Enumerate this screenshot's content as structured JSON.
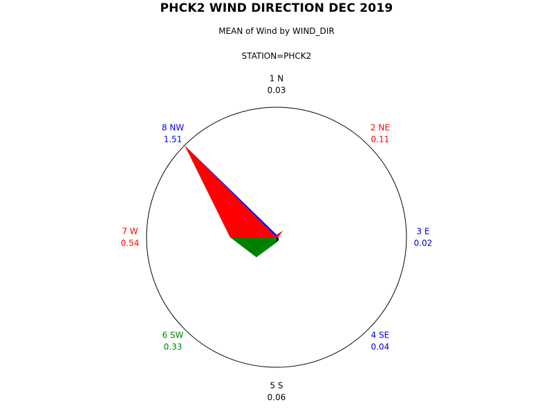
{
  "title": "PHCK2 WIND DIRECTION DEC 2019",
  "subtitle": "MEAN of Wind by WIND_DIR",
  "station": "STATION=PHCK2",
  "chart_data": {
    "type": "polar-star",
    "title": "PHCK2 WIND DIRECTION DEC 2019",
    "subtitle": "MEAN of Wind by WIND_DIR",
    "group": "STATION=PHCK2",
    "rmax": 1.51,
    "directions": [
      {
        "label": "1 N",
        "value": 0.03,
        "value_text": "0.03",
        "color": "#000000"
      },
      {
        "label": "2 NE",
        "value": 0.11,
        "value_text": "0.11",
        "color": "#ff0000"
      },
      {
        "label": "3 E",
        "value": 0.02,
        "value_text": "0.02",
        "color": "#0000cc"
      },
      {
        "label": "4 SE",
        "value": 0.04,
        "value_text": "0.04",
        "color": "#0000cc"
      },
      {
        "label": "5 S",
        "value": 0.06,
        "value_text": "0.06",
        "color": "#000000"
      },
      {
        "label": "6 SW",
        "value": 0.33,
        "value_text": "0.33",
        "color": "#008000"
      },
      {
        "label": "7 W",
        "value": 0.54,
        "value_text": "0.54",
        "color": "#ff0000"
      },
      {
        "label": "8 NW",
        "value": 1.51,
        "value_text": "1.51",
        "color": "#0000ff"
      }
    ],
    "sectors": [
      {
        "from": "1 N",
        "to": "2 NE",
        "color": "#ff0000"
      },
      {
        "from": "2 NE",
        "to": "3 E",
        "color": "#ff0000"
      },
      {
        "from": "3 E",
        "to": "4 SE",
        "color": "#000000"
      },
      {
        "from": "4 SE",
        "to": "5 S",
        "color": "#000000"
      },
      {
        "from": "5 S",
        "to": "6 SW",
        "color": "#008000"
      },
      {
        "from": "6 SW",
        "to": "7 W",
        "color": "#008000"
      },
      {
        "from": "7 W",
        "to": "8 NW",
        "color": "#ff0000"
      },
      {
        "from": "8 NW",
        "to": "1 N",
        "color": "#0000ff"
      }
    ]
  }
}
